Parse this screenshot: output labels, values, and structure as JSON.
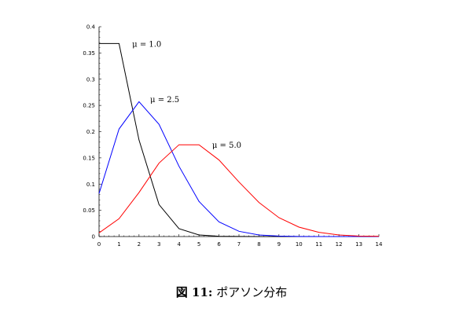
{
  "caption": {
    "prefix": "図 11:",
    "text": "ポアソン分布"
  },
  "chart_data": {
    "type": "line",
    "title": "",
    "xlabel": "",
    "ylabel": "",
    "xlim": [
      0,
      14
    ],
    "ylim": [
      0,
      0.4
    ],
    "x": [
      0,
      1,
      2,
      3,
      4,
      5,
      6,
      7,
      8,
      9,
      10,
      11,
      12,
      13,
      14
    ],
    "x_ticks": [
      "0",
      "1",
      "2",
      "3",
      "4",
      "5",
      "6",
      "7",
      "8",
      "9",
      "10",
      "11",
      "12",
      "13",
      "14"
    ],
    "y_ticks": [
      "0",
      "0.05",
      "0.1",
      "0.15",
      "0.2",
      "0.25",
      "0.3",
      "0.35",
      "0.4"
    ],
    "y_tick_values": [
      0,
      0.05,
      0.1,
      0.15,
      0.2,
      0.25,
      0.3,
      0.35,
      0.4
    ],
    "grid": false,
    "series": [
      {
        "label": "μ = 1.0",
        "color": "#000000",
        "values": [
          0.368,
          0.368,
          0.184,
          0.061,
          0.015,
          0.003,
          0.0005,
          0.0001,
          0,
          0,
          0,
          0,
          0,
          0,
          0
        ],
        "label_at": [
          1.5,
          0.368
        ]
      },
      {
        "label": "μ = 2.5",
        "color": "#0000ff",
        "values": [
          0.082,
          0.205,
          0.257,
          0.214,
          0.134,
          0.067,
          0.028,
          0.01,
          0.003,
          0.001,
          0.0002,
          0,
          0,
          0,
          0
        ],
        "label_at": [
          2.4,
          0.262
        ]
      },
      {
        "label": "μ = 5.0",
        "color": "#ff0000",
        "values": [
          0.007,
          0.034,
          0.084,
          0.14,
          0.175,
          0.175,
          0.146,
          0.104,
          0.065,
          0.036,
          0.018,
          0.008,
          0.003,
          0.001,
          0.0005
        ],
        "label_at": [
          5.5,
          0.175
        ]
      }
    ]
  }
}
